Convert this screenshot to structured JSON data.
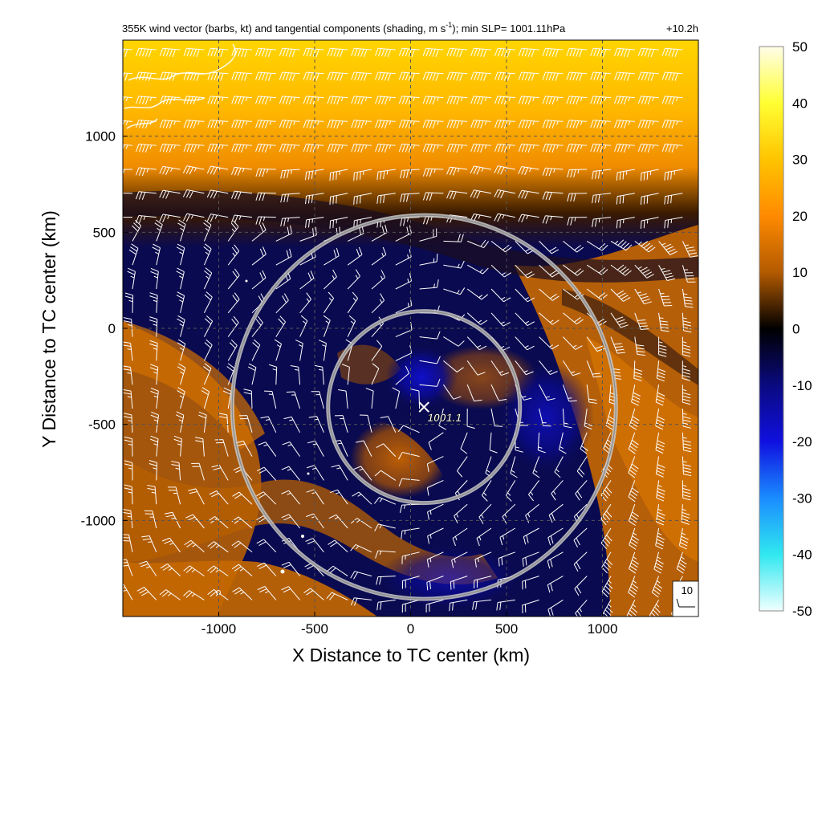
{
  "chart_data": {
    "type": "heatmap",
    "title_main": "355K wind vector (barbs, kt) and tangential components (shading, m s",
    "title_sup": "-1",
    "title_rest": "); min SLP= 1001.11hPa",
    "time_label": "+10.2h",
    "xlabel": "X Distance to TC center (km)",
    "ylabel": "Y Distance to TC center (km)",
    "xlim": [
      -1500,
      1500
    ],
    "ylim": [
      -1500,
      1500
    ],
    "x_ticks": [
      -1000,
      -500,
      0,
      500,
      1000
    ],
    "y_ticks": [
      1000,
      500,
      0,
      -500,
      -1000
    ],
    "grid": "dashed",
    "center": {
      "x": 70,
      "y": -410,
      "label": "1001.1"
    },
    "range_rings_km": [
      500,
      1000
    ],
    "colorbar": {
      "ticks": [
        50,
        40,
        30,
        20,
        10,
        0,
        -10,
        -20,
        -30,
        -40,
        -50
      ],
      "range": [
        -50,
        50
      ],
      "colors": [
        "#fffde8",
        "#ffff33",
        "#ffc400",
        "#ff8a00",
        "#b35a00",
        "#000000",
        "#0a0a80",
        "#1010e0",
        "#1a8cff",
        "#30e8f0",
        "#f0ffff"
      ]
    },
    "reference_barb": {
      "label": "10"
    }
  }
}
